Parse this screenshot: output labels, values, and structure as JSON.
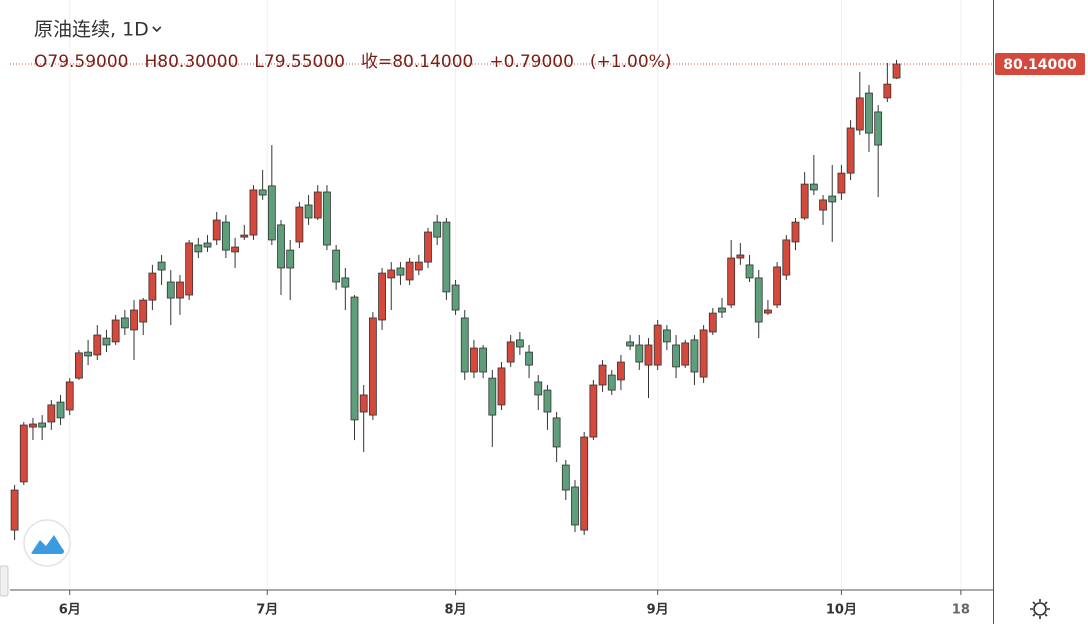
{
  "chart_data": {
    "type": "candlestick",
    "title": "原油连续, 1D",
    "legend_items": [
      "O79.59000",
      "H80.30000",
      "L79.55000",
      "收=80.14000",
      "+0.79000",
      "(+1.00%)"
    ],
    "last_price_label": {
      "value": 80.14,
      "label": "80.14000"
    },
    "up_color": "#d4493b",
    "down_color": "#5f9e7a",
    "xlim": [
      -0.5,
      106.5
    ],
    "xticks": [
      {
        "value": 6,
        "label": "6月"
      },
      {
        "value": 27.5,
        "label": "7月"
      },
      {
        "value": 48,
        "label": "8月"
      },
      {
        "value": 70,
        "label": "9月"
      },
      {
        "value": 90,
        "label": "10月"
      },
      {
        "value": 103,
        "label": "18"
      }
    ],
    "ylim": [
      59.51,
      82.65
    ],
    "grid": true,
    "open": [
      61.86,
      63.75,
      65.9,
      66.06,
      66.1,
      66.88,
      66.57,
      67.82,
      68.84,
      68.73,
      69.39,
      69.24,
      70.18,
      69.71,
      70.02,
      70.88,
      72.37,
      71.59,
      70.96,
      71.08,
      73.04,
      73.12,
      73.24,
      73.94,
      72.77,
      73.35,
      73.43,
      75.2,
      75.36,
      73.83,
      72.84,
      73.16,
      74.61,
      74.1,
      75.12,
      72.84,
      71.75,
      71.0,
      66.49,
      66.37,
      70.1,
      71.75,
      72.14,
      71.67,
      72.06,
      72.37,
      73.94,
      73.94,
      71.47,
      70.18,
      68.06,
      69.0,
      67.82,
      66.77,
      68.45,
      69.32,
      68.84,
      67.67,
      67.35,
      66.26,
      64.41,
      63.55,
      61.86,
      65.51,
      67.55,
      67.94,
      67.75,
      69.24,
      69.12,
      68.33,
      68.33,
      69.71,
      69.12,
      68.33,
      69.32,
      67.86,
      69.63,
      70.57,
      70.69,
      72.53,
      72.26,
      71.75,
      70.37,
      70.69,
      71.86,
      73.16,
      74.1,
      75.43,
      74.41,
      74.96,
      75.08,
      75.86,
      77.55,
      79.0,
      78.26,
      78.81,
      79.59
    ],
    "high": [
      63.63,
      66.1,
      66.26,
      66.37,
      66.96,
      67.16,
      67.82,
      68.92,
      69.32,
      69.9,
      69.71,
      70.3,
      70.49,
      70.88,
      70.96,
      72.26,
      72.65,
      72.06,
      71.86,
      73.24,
      73.32,
      73.43,
      74.34,
      74.22,
      73.32,
      73.83,
      75.39,
      75.98,
      76.96,
      74.02,
      73.24,
      74.73,
      75.0,
      75.39,
      75.39,
      73.04,
      72.14,
      71.08,
      67.55,
      70.41,
      72.14,
      72.37,
      72.37,
      72.53,
      72.65,
      73.71,
      74.22,
      74.1,
      71.67,
      70.49,
      69.32,
      69.12,
      68.14,
      68.45,
      69.51,
      69.63,
      69.12,
      67.94,
      67.55,
      66.49,
      64.61,
      63.82,
      65.71,
      67.75,
      68.53,
      68.14,
      68.73,
      69.51,
      69.51,
      69.39,
      70.1,
      69.9,
      69.51,
      69.32,
      69.51,
      69.9,
      70.57,
      70.96,
      73.24,
      73.12,
      72.65,
      72.06,
      70.88,
      72.37,
      73.43,
      74.1,
      75.9,
      76.57,
      75.0,
      76.18,
      76.18,
      77.94,
      79.83,
      79.32,
      78.53,
      80.18,
      80.3
    ],
    "low": [
      61.47,
      63.63,
      65.39,
      65.39,
      65.79,
      65.98,
      66.37,
      67.75,
      68.33,
      68.53,
      68.84,
      69.12,
      69.51,
      68.53,
      69.51,
      70.49,
      71.47,
      69.9,
      70.3,
      70.88,
      72.53,
      72.77,
      73.04,
      72.53,
      72.14,
      73.24,
      73.24,
      74.81,
      73.04,
      71.08,
      70.88,
      72.92,
      73.83,
      74.02,
      72.84,
      71.28,
      70.49,
      65.39,
      64.92,
      66.18,
      69.71,
      70.49,
      71.47,
      71.47,
      71.86,
      72.14,
      73.04,
      70.88,
      70.3,
      67.75,
      67.82,
      67.82,
      65.12,
      66.57,
      68.26,
      68.73,
      67.82,
      66.57,
      65.79,
      64.53,
      63.04,
      61.78,
      61.67,
      65.39,
      67.28,
      67.16,
      67.35,
      68.92,
      68.14,
      67.04,
      68.14,
      68.92,
      67.82,
      68.22,
      67.55,
      67.63,
      69.51,
      70.18,
      70.57,
      72.26,
      71.59,
      69.39,
      70.3,
      70.57,
      71.67,
      72.84,
      74.02,
      75.0,
      73.83,
      73.16,
      74.81,
      75.59,
      77.36,
      76.69,
      74.92,
      78.65,
      79.55
    ],
    "close": [
      63.43,
      65.98,
      66.02,
      65.9,
      66.77,
      66.26,
      67.67,
      68.81,
      68.69,
      69.51,
      69.12,
      70.1,
      69.79,
      70.49,
      70.88,
      71.94,
      72.06,
      70.96,
      71.59,
      73.12,
      72.77,
      72.96,
      74.02,
      72.84,
      72.96,
      73.43,
      75.2,
      75.0,
      73.24,
      72.14,
      72.14,
      74.53,
      74.1,
      75.12,
      73.04,
      71.59,
      71.39,
      66.18,
      67.16,
      70.18,
      71.94,
      72.06,
      71.86,
      72.37,
      72.37,
      73.55,
      73.35,
      71.2,
      70.49,
      68.06,
      69.0,
      68.06,
      66.37,
      68.22,
      69.24,
      69.04,
      68.33,
      67.16,
      66.49,
      65.12,
      63.43,
      62.06,
      65.51,
      67.55,
      68.33,
      67.35,
      68.45,
      69.08,
      68.45,
      69.12,
      69.9,
      69.24,
      68.26,
      69.2,
      68.06,
      69.71,
      70.37,
      70.41,
      72.53,
      72.65,
      71.75,
      70.02,
      70.49,
      72.18,
      73.24,
      73.94,
      75.43,
      75.2,
      74.81,
      74.73,
      75.86,
      77.63,
      78.81,
      77.43,
      76.96,
      79.35,
      80.14
    ]
  }
}
